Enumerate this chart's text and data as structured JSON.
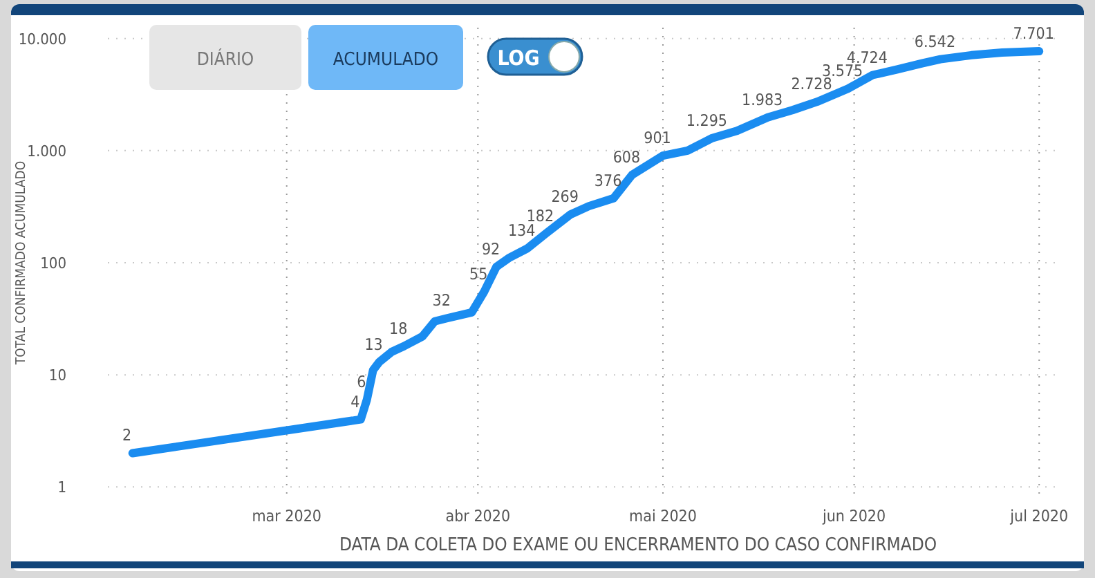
{
  "chart_data": {
    "type": "line",
    "xlabel": "DATA DA COLETA DO EXAME OU ENCERRAMENTO DO CASO CONFIRMADO",
    "ylabel": "TOTAL CONFIRMADO ACUMULADO",
    "annotations": [
      "DIÁRIO",
      "ACUMULADO",
      "LOG"
    ],
    "x": [
      "2020-02-05",
      "2020-03-13",
      "2020-03-14",
      "2020-03-15",
      "2020-03-16",
      "2020-03-18",
      "2020-03-20",
      "2020-03-23",
      "2020-03-25",
      "2020-03-27",
      "2020-03-31",
      "2020-04-02",
      "2020-04-04",
      "2020-04-06",
      "2020-04-09",
      "2020-04-12",
      "2020-04-16",
      "2020-04-19",
      "2020-04-23",
      "2020-04-26",
      "2020-05-01",
      "2020-05-05",
      "2020-05-09",
      "2020-05-13",
      "2020-05-18",
      "2020-05-22",
      "2020-05-26",
      "2020-05-31",
      "2020-06-04",
      "2020-06-08",
      "2020-06-12",
      "2020-06-15",
      "2020-06-20",
      "2020-06-25",
      "2020-07-01"
    ],
    "series": [
      {
        "color": "#1a8cf0",
        "values": [
          2,
          4,
          6,
          11,
          13,
          16,
          18,
          22,
          30,
          32,
          36,
          55,
          92,
          110,
          134,
          182,
          269,
          320,
          376,
          608,
          901,
          1000,
          1295,
          1500,
          1983,
          2300,
          2728,
          3575,
          4724,
          5300,
          6000,
          6542,
          7100,
          7500,
          7701
        ],
        "value_labels": [
          "2",
          "4",
          "6",
          null,
          "13",
          null,
          "18",
          null,
          null,
          "32",
          null,
          "55",
          "92",
          null,
          "134",
          "182",
          "269",
          null,
          "376",
          "608",
          "901",
          null,
          "1.295",
          null,
          "1.983",
          null,
          "2.728",
          "3.575",
          "4.724",
          null,
          null,
          "6.542",
          null,
          null,
          "7.701"
        ]
      }
    ],
    "xlim": [
      "2020-02-01",
      "2020-07-04"
    ],
    "xticks": [
      {
        "value": "2020-03-01",
        "label": "mar 2020"
      },
      {
        "value": "2020-04-01",
        "label": "abr 2020"
      },
      {
        "value": "2020-05-01",
        "label": "mai 2020"
      },
      {
        "value": "2020-06-01",
        "label": "jun 2020"
      },
      {
        "value": "2020-07-01",
        "label": "jul 2020"
      }
    ],
    "ylim": [
      0.8,
      12500
    ],
    "yticks": [
      1,
      10,
      100,
      {
        "value": 1000,
        "label": "1.000"
      },
      {
        "value": 10000,
        "label": "10.000"
      }
    ],
    "log": true,
    "grid": true,
    "marker": "none",
    "line_style": "solid"
  }
}
